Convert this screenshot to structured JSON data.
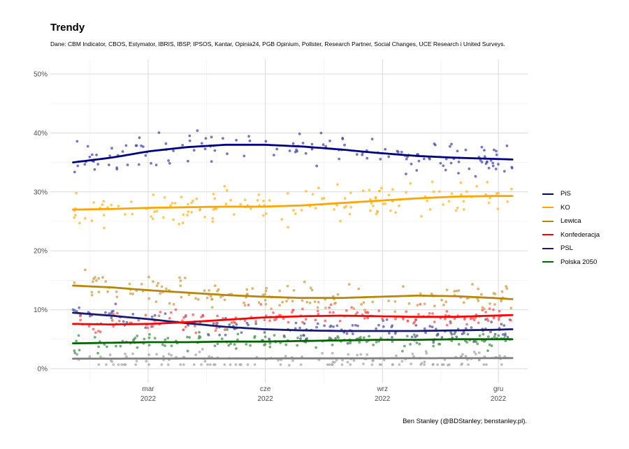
{
  "chart_data": {
    "type": "scatter",
    "title": "Trendy",
    "subtitle": "Dane: CBM Indicator, CBOS, Estymator, IBRIS, IBSP, IPSOS, Kantar, Opinia24, PGB Opinium, Pollster, Research Partner, Social Changes, UCE Research i United Surveys.",
    "caption": "Ben Stanley (@BDStanley; benstanley.pl).",
    "xlabel": "",
    "ylabel": "",
    "ylim": [
      0,
      50
    ],
    "xlim_days": [
      -12,
      357
    ],
    "x_unit": "days since 1 Jan 2022",
    "grid": true,
    "legend_position": "right",
    "y_ticks": [
      {
        "value": 0,
        "label": "0%"
      },
      {
        "value": 10,
        "label": "10%"
      },
      {
        "value": 20,
        "label": "20%"
      },
      {
        "value": 30,
        "label": "30%"
      },
      {
        "value": 40,
        "label": "40%"
      },
      {
        "value": 50,
        "label": "50%"
      }
    ],
    "x_ticks": [
      {
        "day": 59,
        "month": "mar",
        "year": "2022"
      },
      {
        "day": 151,
        "month": "cze",
        "year": "2022"
      },
      {
        "day": 243,
        "month": "wrz",
        "year": "2022"
      },
      {
        "day": 334,
        "month": "gru",
        "year": "2022"
      }
    ],
    "x_minor_ticks": [
      13,
      105,
      197,
      289
    ],
    "series": [
      {
        "name": "PiS",
        "color": "#00007f",
        "point_color": "#4b4ba6",
        "legend": true,
        "trend": {
          "x": [
            0,
            30,
            60,
            90,
            120,
            150,
            180,
            210,
            240,
            270,
            300,
            330,
            345
          ],
          "y": [
            35.0,
            35.8,
            36.9,
            37.6,
            38.0,
            38.0,
            37.7,
            37.2,
            36.6,
            36.1,
            35.8,
            35.6,
            35.5
          ]
        },
        "spread": 2.2
      },
      {
        "name": "KO",
        "color": "#ffa500",
        "point_color": "#ffb733",
        "legend": true,
        "trend": {
          "x": [
            0,
            30,
            60,
            90,
            120,
            150,
            180,
            210,
            240,
            270,
            300,
            330,
            345
          ],
          "y": [
            27.0,
            27.1,
            27.3,
            27.4,
            27.5,
            27.5,
            27.7,
            28.1,
            28.5,
            28.9,
            29.2,
            29.3,
            29.3
          ]
        },
        "spread": 2.2
      },
      {
        "name": "Lewica",
        "color": "#b8860b",
        "point_color": "#c9a04a",
        "legend": true,
        "trend": {
          "x": [
            0,
            30,
            60,
            90,
            120,
            150,
            180,
            210,
            240,
            270,
            300,
            330,
            345
          ],
          "y": [
            14.1,
            13.8,
            13.3,
            12.9,
            12.5,
            12.2,
            12.0,
            12.0,
            12.2,
            12.4,
            12.3,
            12.0,
            11.8
          ]
        },
        "spread": 1.6
      },
      {
        "name": "Konfederacja",
        "color": "#ff0000",
        "point_color": "#f25a5a",
        "legend": true,
        "trend": {
          "x": [
            0,
            30,
            60,
            90,
            120,
            150,
            180,
            210,
            240,
            270,
            300,
            330,
            345
          ],
          "y": [
            7.6,
            7.5,
            7.6,
            7.9,
            8.3,
            8.7,
            8.9,
            9.0,
            8.9,
            8.8,
            8.8,
            9.0,
            9.1
          ]
        },
        "spread": 1.3
      },
      {
        "name": "PSL",
        "color": "#191970",
        "point_color": "#5a5aa0",
        "legend": true,
        "trend": {
          "x": [
            0,
            30,
            60,
            90,
            120,
            150,
            180,
            210,
            240,
            270,
            300,
            330,
            345
          ],
          "y": [
            9.5,
            9.0,
            8.4,
            7.7,
            7.1,
            6.7,
            6.5,
            6.4,
            6.4,
            6.4,
            6.5,
            6.6,
            6.7
          ]
        },
        "spread": 1.4
      },
      {
        "name": "Polska 2050",
        "color": "#006400",
        "point_color": "#4d934d",
        "legend": true,
        "trend": {
          "x": [
            0,
            30,
            60,
            90,
            120,
            150,
            180,
            210,
            240,
            270,
            300,
            330,
            345
          ],
          "y": [
            4.3,
            4.4,
            4.5,
            4.5,
            4.6,
            4.6,
            4.7,
            4.8,
            4.9,
            4.9,
            5.0,
            5.0,
            5.0
          ]
        },
        "spread": 1.1
      },
      {
        "name": "Other",
        "color": "#808080",
        "point_color": "#a8a8a8",
        "legend": false,
        "trend": {
          "x": [
            0,
            345
          ],
          "y": [
            1.7,
            1.8
          ]
        },
        "spread": 0.9
      }
    ]
  }
}
